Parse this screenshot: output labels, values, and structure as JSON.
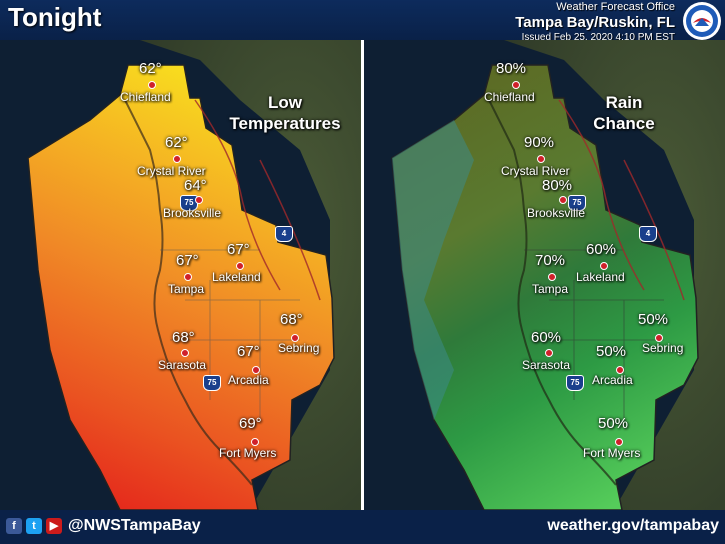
{
  "header": {
    "title": "Tonight",
    "office_title": "Weather Forecast Office",
    "office_name": "Tampa Bay/Ruskin, FL",
    "issued": "Issued Feb 25, 2020 4:10 PM EST",
    "logo_icon": "noaa-nws-logo-icon"
  },
  "left_panel": {
    "legend_line1": "Low",
    "legend_line2": "Temperatures",
    "highway_shields": [
      "75",
      "75",
      "4"
    ],
    "cities": [
      {
        "name": "Chiefland",
        "value": "62°"
      },
      {
        "name": "Crystal River",
        "value": "62°"
      },
      {
        "name": "Brooksville",
        "value": "64°"
      },
      {
        "name": "Lakeland",
        "value": "67°"
      },
      {
        "name": "Tampa",
        "value": "67°"
      },
      {
        "name": "Sebring",
        "value": "68°"
      },
      {
        "name": "Sarasota",
        "value": "68°"
      },
      {
        "name": "Arcadia",
        "value": "67°"
      },
      {
        "name": "Fort Myers",
        "value": "69°"
      }
    ]
  },
  "right_panel": {
    "legend_line1": "Rain",
    "legend_line2": "Chance",
    "highway_shields": [
      "75",
      "75",
      "4"
    ],
    "cities": [
      {
        "name": "Chiefland",
        "value": "80%"
      },
      {
        "name": "Crystal River",
        "value": "90%"
      },
      {
        "name": "Brooksville",
        "value": "80%"
      },
      {
        "name": "Lakeland",
        "value": "60%"
      },
      {
        "name": "Tampa",
        "value": "70%"
      },
      {
        "name": "Sebring",
        "value": "50%"
      },
      {
        "name": "Sarasota",
        "value": "60%"
      },
      {
        "name": "Arcadia",
        "value": "50%"
      },
      {
        "name": "Fort Myers",
        "value": "50%"
      }
    ]
  },
  "footer": {
    "social_icons": [
      "facebook-icon",
      "twitter-icon",
      "youtube-icon"
    ],
    "handle": "@NWSTampaBay",
    "website": "weather.gov/tampabay"
  },
  "colors": {
    "temp_warm": "#e8321e",
    "temp_cool": "#f5d21e",
    "rain_high": "#5a6e1e",
    "rain_low": "#4fc85a",
    "header_bg": "#0d2b5c"
  }
}
